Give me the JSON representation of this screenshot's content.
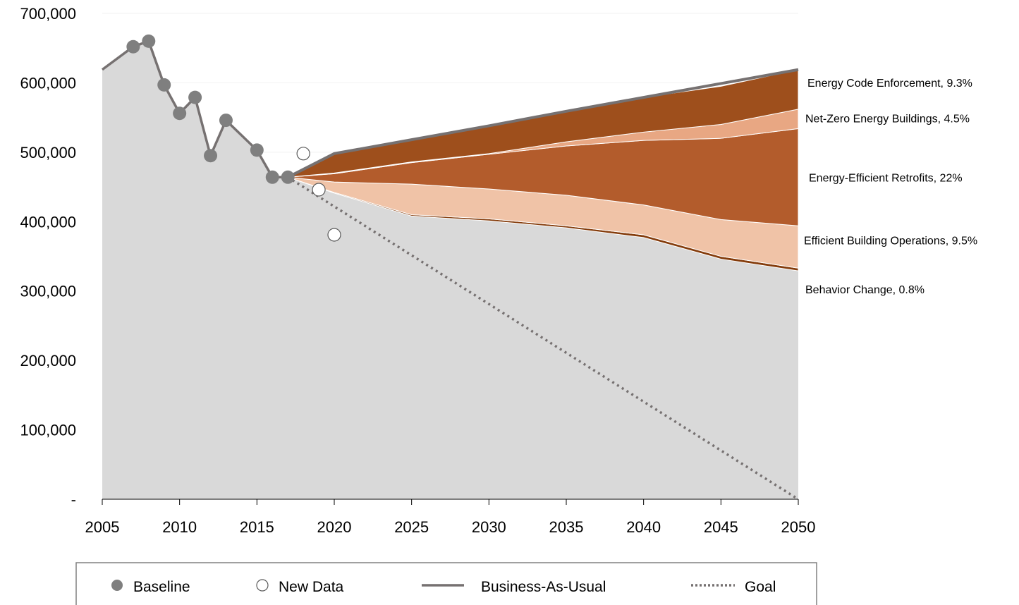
{
  "chart_data": {
    "type": "area",
    "title": "",
    "xlabel": "",
    "ylabel": "",
    "xlim": [
      2005,
      2050
    ],
    "ylim": [
      0,
      700000
    ],
    "x_ticks": [
      "2005",
      "2010",
      "2015",
      "2020",
      "2025",
      "2030",
      "2035",
      "2040",
      "2045",
      "2050"
    ],
    "y_ticks": [
      "-",
      "100,000",
      "200,000",
      "300,000",
      "400,000",
      "500,000",
      "600,000",
      "700,000"
    ],
    "y_tick_values": [
      0,
      100000,
      200000,
      300000,
      400000,
      500000,
      600000,
      700000
    ],
    "grid": "horizontal",
    "legend_position": "bottom",
    "colors": {
      "remaining_area": "#d9d9d9",
      "behavior_change": "#843c0c",
      "efficient_building_operations": "#f0c3a7",
      "energy_efficient_retrofits": "#b35c2c",
      "net_zero_energy_buildings": "#e8a783",
      "energy_code_enforcement": "#9e4f1c",
      "line": "#767171",
      "marker": "#7f7f7f"
    },
    "baseline": {
      "name": "Baseline",
      "x": [
        2005,
        2007,
        2008,
        2009,
        2010,
        2011,
        2012,
        2013,
        2015,
        2016,
        2017
      ],
      "y": [
        619000,
        652000,
        660000,
        597000,
        556000,
        579000,
        495000,
        546000,
        503000,
        464000,
        464000
      ]
    },
    "new_data": {
      "name": "New Data",
      "x": [
        2018,
        2019,
        2020
      ],
      "y": [
        498000,
        446000,
        381000
      ]
    },
    "business_as_usual": {
      "name": "Business-As-Usual",
      "x": [
        2017,
        2020,
        2025,
        2030,
        2035,
        2040,
        2045,
        2050
      ],
      "y": [
        464000,
        498000,
        518000,
        538000,
        559000,
        579000,
        599000,
        619000
      ]
    },
    "goal": {
      "name": "Goal",
      "x": [
        2017,
        2050
      ],
      "y": [
        464000,
        0
      ]
    },
    "x_points": [
      2017,
      2020,
      2025,
      2030,
      2035,
      2040,
      2045,
      2050
    ],
    "remaining": [
      464000,
      441000,
      408000,
      401000,
      391000,
      377000,
      346000,
      329000
    ],
    "series": [
      {
        "name": "Behavior Change, 0.8%",
        "key": "behavior_change",
        "values": [
          0,
          1000,
          2000,
          3000,
          3000,
          4000,
          4000,
          4000
        ]
      },
      {
        "name": "Efficient Building Operations, 9.5%",
        "key": "efficient_building_operations",
        "values": [
          0,
          15000,
          44000,
          43000,
          44000,
          43000,
          53000,
          61000
        ]
      },
      {
        "name": "Energy-Efficient Retrofits, 22%",
        "key": "energy_efficient_retrofits",
        "values": [
          0,
          12000,
          31000,
          50000,
          71000,
          93000,
          117000,
          140000
        ]
      },
      {
        "name": "Net-Zero Energy Buildings, 4.5%",
        "key": "net_zero_energy_buildings",
        "values": [
          0,
          1000,
          1000,
          1000,
          6000,
          12000,
          20000,
          28000
        ]
      },
      {
        "name": "Energy Code Enforcement, 9.3%",
        "key": "energy_code_enforcement",
        "values": [
          0,
          28000,
          32000,
          40000,
          44000,
          50000,
          55000,
          57000
        ]
      }
    ]
  },
  "legend": {
    "baseline": "Baseline",
    "new_data": "New Data",
    "business_as_usual": "Business-As-Usual",
    "goal": "Goal"
  }
}
